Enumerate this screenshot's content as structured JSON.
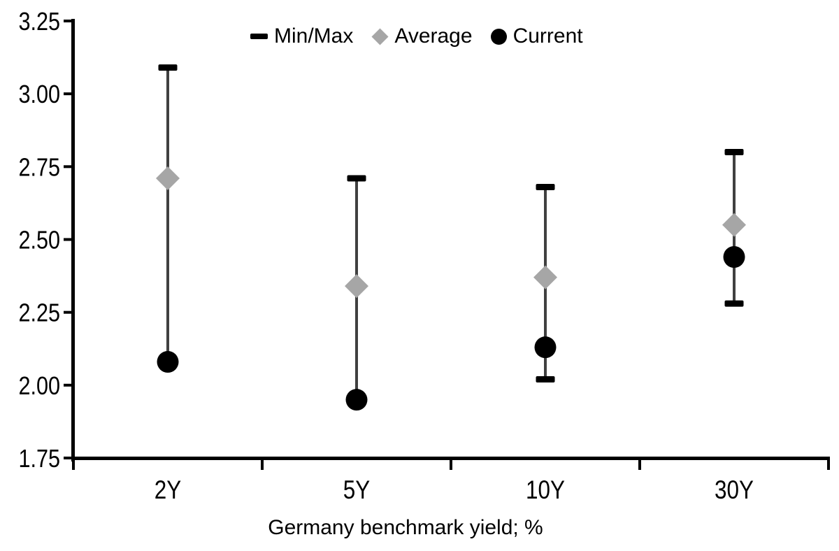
{
  "chart_data": {
    "type": "scatter",
    "subtype": "min-max-range-chart",
    "title": "",
    "xlabel": "Germany benchmark yield; %",
    "ylabel": "",
    "categories": [
      "2Y",
      "5Y",
      "10Y",
      "30Y"
    ],
    "series": [
      {
        "name": "Min/Max",
        "marker": "dash",
        "min": [
          2.08,
          1.95,
          2.02,
          2.28
        ],
        "max": [
          3.09,
          2.71,
          2.68,
          2.8
        ]
      },
      {
        "name": "Average",
        "marker": "diamond",
        "values": [
          2.71,
          2.34,
          2.37,
          2.55
        ]
      },
      {
        "name": "Current",
        "marker": "circle",
        "values": [
          2.08,
          1.95,
          2.13,
          2.44
        ]
      }
    ],
    "ylim": [
      1.75,
      3.25
    ],
    "ytick_step": 0.25,
    "yticks": [
      "3.25",
      "3.00",
      "2.75",
      "2.50",
      "2.25",
      "2.00",
      "1.75"
    ],
    "grid": false,
    "legend_position": "top-center",
    "colors": {
      "black_marker": "#000000",
      "average_gray": "#A6A6A6",
      "range_line": "#404040",
      "axis": "#000000",
      "text": "#000000",
      "background": "#FFFFFF"
    }
  }
}
